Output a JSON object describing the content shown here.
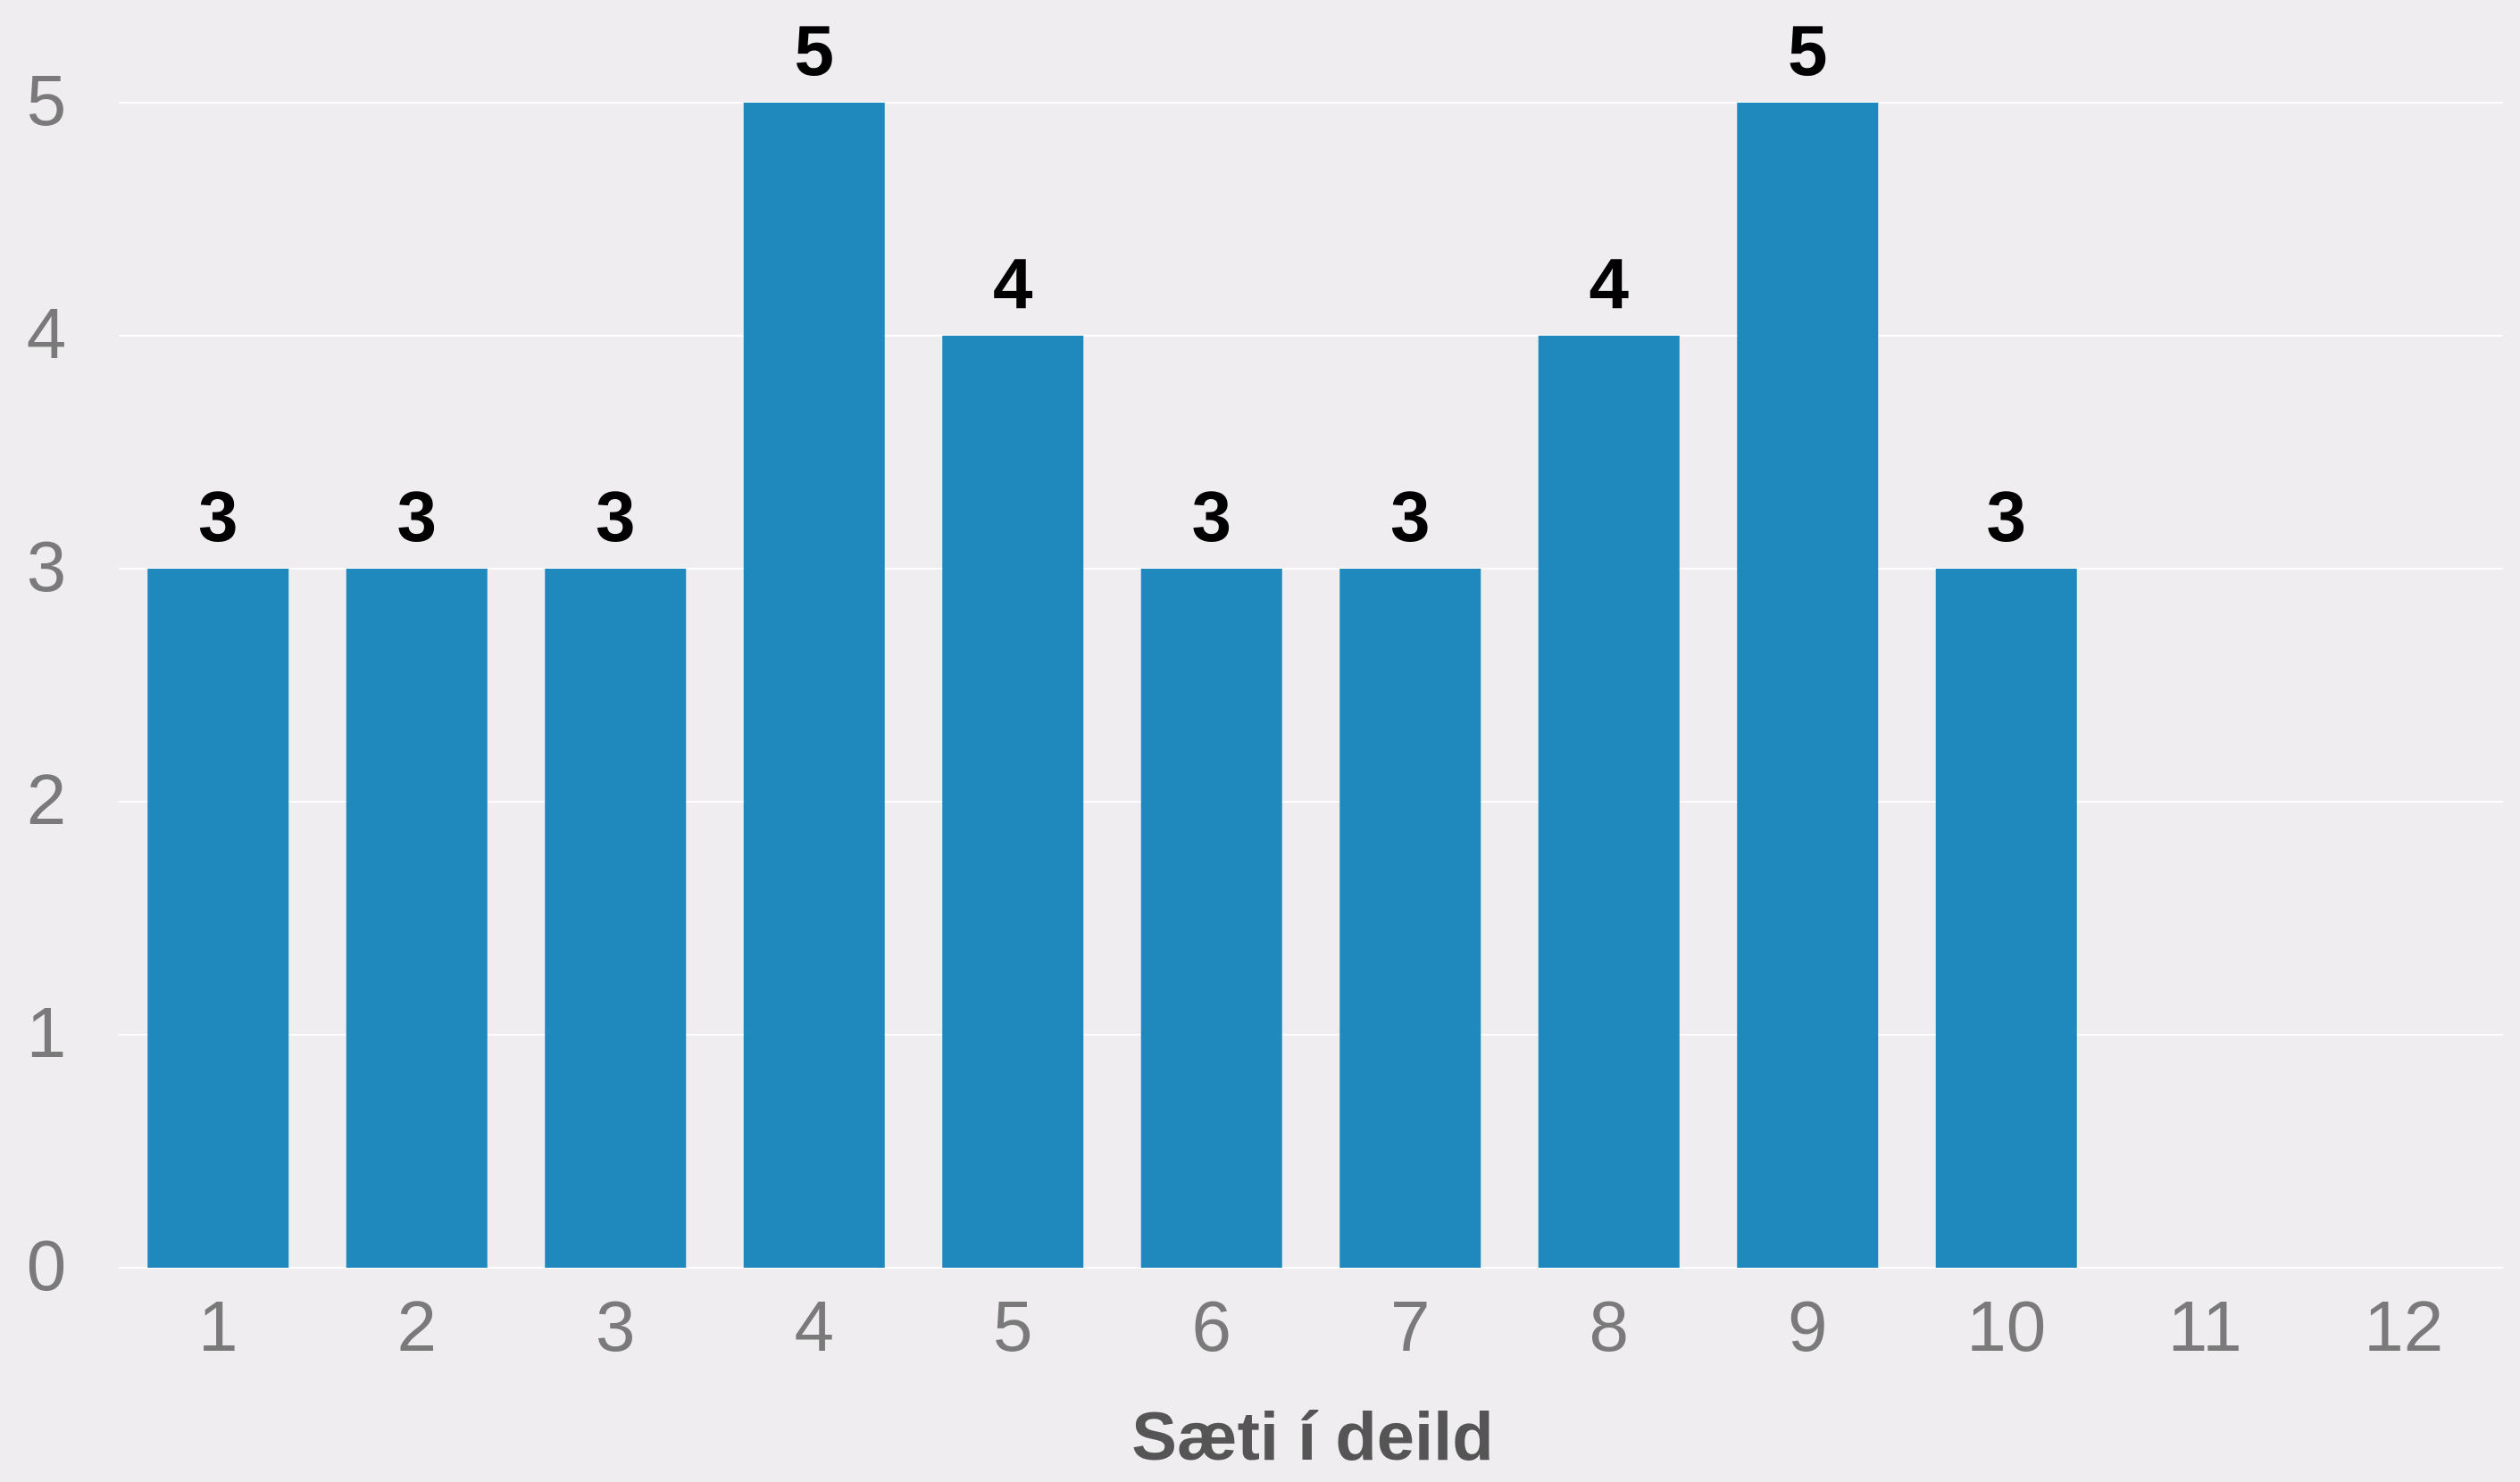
{
  "chart_data": {
    "type": "bar",
    "x_label": "Sæti í deild",
    "categories": [
      "1",
      "2",
      "3",
      "4",
      "5",
      "6",
      "7",
      "8",
      "9",
      "10",
      "11",
      "12"
    ],
    "values": [
      3,
      3,
      3,
      5,
      4,
      3,
      3,
      4,
      5,
      3,
      null,
      null
    ],
    "color": "#1f88bc",
    "ylim": [
      0,
      5
    ],
    "yticks": [
      0,
      1,
      2,
      3,
      4,
      5
    ],
    "grid": true
  }
}
